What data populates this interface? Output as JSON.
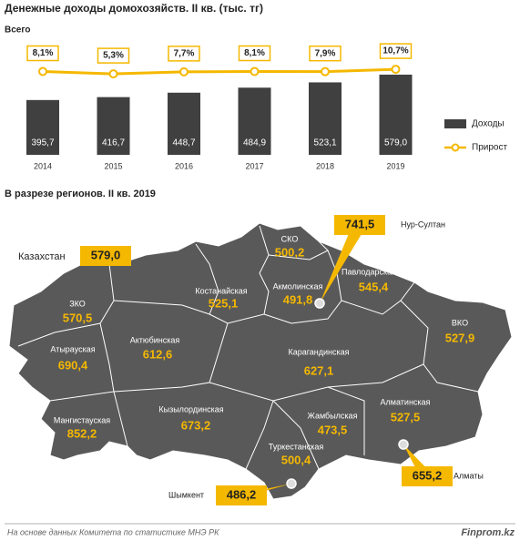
{
  "chart_data": [
    {
      "type": "bar",
      "title": "Денежные доходы домохозяйств. II кв. (тыс. тг)",
      "subtitle": "Всего",
      "categories": [
        "2014",
        "2015",
        "2016",
        "2017",
        "2018",
        "2019"
      ],
      "series": [
        {
          "name": "Доходы",
          "color": "#404040",
          "values": [
            395.7,
            416.7,
            448.7,
            484.9,
            523.1,
            579.0
          ],
          "value_labels": [
            "395,7",
            "416,7",
            "448,7",
            "484,9",
            "523,1",
            "579,0"
          ]
        },
        {
          "name": "Прирост",
          "color": "#f5b800",
          "axis": "y2",
          "values": [
            8.1,
            5.3,
            7.7,
            8.1,
            7.9,
            10.7
          ],
          "value_labels": [
            "8,1%",
            "5,3%",
            "7,7%",
            "8,1%",
            "7,9%",
            "10,7%"
          ]
        }
      ],
      "ylim": [
        0,
        822
      ],
      "y2lim": [
        -90,
        44
      ],
      "legend": "right"
    },
    {
      "type": "map",
      "title": "В разрезе регионов. II кв. 2019",
      "categories": [
        "Казахстан",
        "ЗКО",
        "Атырауская",
        "Мангистауская",
        "Актюбинская",
        "Костанайская",
        "СКО",
        "Акмолинская",
        "Павлодарская",
        "ВКО",
        "Карагандинская",
        "Кызылординская",
        "Жамбылская",
        "Алматинская",
        "Туркестанская",
        "Нур-Султан",
        "Алматы",
        "Шымкент"
      ],
      "values": [
        579.0,
        570.5,
        690.4,
        852.2,
        612.6,
        525.1,
        500.2,
        491.8,
        545.4,
        527.9,
        627.1,
        673.2,
        473.5,
        527.5,
        500.4,
        741.5,
        655.2,
        486.2
      ],
      "value_labels": [
        "579,0",
        "570,5",
        "690,4",
        "852,2",
        "612,6",
        "525,1",
        "500,2",
        "491,8",
        "545,4",
        "527,9",
        "627,1",
        "673,2",
        "473,5",
        "527,5",
        "500,4",
        "741,5",
        "655,2",
        "486,2"
      ],
      "color": "#595959",
      "label_color": "#f5b800"
    }
  ],
  "source": "На основе данных Комитета по статистике МНЭ РК",
  "brand": "Finprom.kz"
}
